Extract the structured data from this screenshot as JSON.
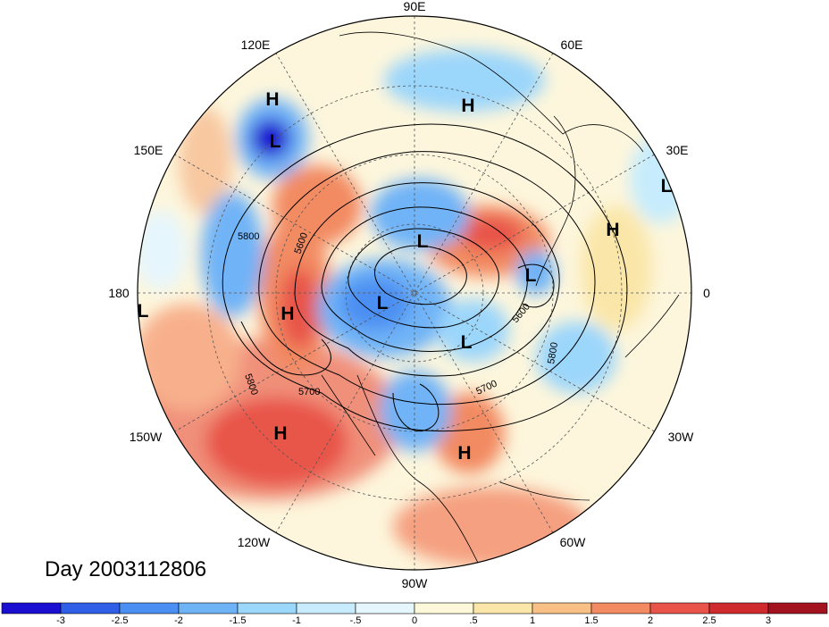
{
  "title": "Day 2003112806",
  "longitude_labels": [
    "90E",
    "60E",
    "30E",
    "0",
    "30W",
    "60W",
    "90W",
    "120W",
    "150W",
    "180",
    "150E",
    "120E"
  ],
  "pressure_centers": [
    {
      "type": "H",
      "lat": 40,
      "lon": 130
    },
    {
      "type": "L",
      "lat": 50,
      "lon": 140
    },
    {
      "type": "H",
      "lat": 45,
      "lon": 75
    },
    {
      "type": "L",
      "lat": 25,
      "lon": 30
    },
    {
      "type": "H",
      "lat": 48,
      "lon": 25
    },
    {
      "type": "L",
      "lat": 70,
      "lon": 95
    },
    {
      "type": "L",
      "lat": 52,
      "lon": 30
    },
    {
      "type": "L",
      "lat": 70,
      "lon": -125
    },
    {
      "type": "L",
      "lat": 65,
      "lon": -50
    },
    {
      "type": "H",
      "lat": 50,
      "lon": -160
    },
    {
      "type": "L",
      "lat": 18,
      "lon": -178
    },
    {
      "type": "H",
      "lat": 30,
      "lon": -140
    },
    {
      "type": "H",
      "lat": 35,
      "lon": -65
    }
  ],
  "contour_labels": [
    "5800",
    "5600",
    "5800",
    "5700",
    "5700",
    "5600",
    "5800"
  ],
  "colorbar": {
    "ticks": [
      "-3",
      "-2.5",
      "-2",
      "-1.5",
      "-1",
      "-.5",
      "0",
      ".5",
      "1",
      "1.5",
      "2",
      "2.5",
      "3"
    ],
    "colors": [
      "#1a0fd0",
      "#2f5fe6",
      "#4b8ff2",
      "#6fb3f7",
      "#9bd6fb",
      "#c6ecfd",
      "#e6f6fd",
      "#fdf8da",
      "#fae6a8",
      "#f8c085",
      "#f28a62",
      "#e8544a",
      "#cf2a2d",
      "#a3121f"
    ]
  }
}
